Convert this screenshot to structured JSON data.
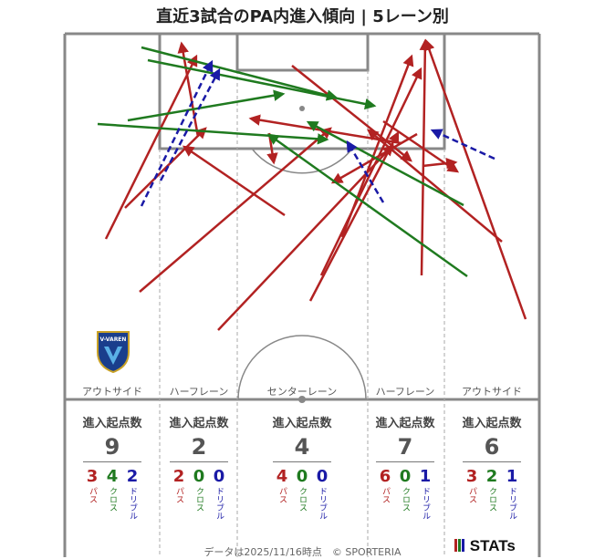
{
  "title": "直近3試合のPA内進入傾向 | 5レーン別",
  "colors": {
    "pass": "#b22222",
    "cross": "#1f7a1f",
    "dribble": "#1a1aa6",
    "line": "#888888"
  },
  "lanes": [
    {
      "name": "アウトサイド",
      "header": "進入起点数",
      "total": "9",
      "pass": "3",
      "cross": "4",
      "dribble": "2"
    },
    {
      "name": "ハーフレーン",
      "header": "進入起点数",
      "total": "2",
      "pass": "2",
      "cross": "0",
      "dribble": "0"
    },
    {
      "name": "センターレーン",
      "header": "進入起点数",
      "total": "4",
      "pass": "4",
      "cross": "0",
      "dribble": "0"
    },
    {
      "name": "ハーフレーン",
      "header": "進入起点数",
      "total": "7",
      "pass": "6",
      "cross": "0",
      "dribble": "1"
    },
    {
      "name": "アウトサイド",
      "header": "進入起点数",
      "total": "6",
      "pass": "3",
      "cross": "2",
      "dribble": "1"
    }
  ],
  "type_labels": {
    "pass": "パス",
    "cross": "クロス",
    "dribble": "ドリブル"
  },
  "footer": "データは2025/11/16時点　© SPORTERIA",
  "brand": "STATs",
  "logo_text": "V-VAREN",
  "chart_data": {
    "type": "scatter",
    "arrows": [
      {
        "kind": "pass",
        "from": [
          116,
          262
        ],
        "to": [
          215,
          62
        ]
      },
      {
        "kind": "pass",
        "from": [
          137,
          228
        ],
        "to": [
          225,
          141
        ]
      },
      {
        "kind": "pass",
        "from": [
          312,
          236
        ],
        "to": [
          202,
          161
        ]
      },
      {
        "kind": "pass",
        "from": [
          217,
          150
        ],
        "to": [
          199,
          48
        ]
      },
      {
        "kind": "pass",
        "from": [
          153,
          320
        ],
        "to": [
          362,
          141
        ]
      },
      {
        "kind": "pass",
        "from": [
          239,
          362
        ],
        "to": [
          430,
          160
        ]
      },
      {
        "kind": "pass",
        "from": [
          295,
          146
        ],
        "to": [
          300,
          178
        ]
      },
      {
        "kind": "pass",
        "from": [
          340,
          330
        ],
        "to": [
          436,
          146
        ]
      },
      {
        "kind": "pass",
        "from": [
          352,
          302
        ],
        "to": [
          461,
          76
        ]
      },
      {
        "kind": "pass",
        "from": [
          375,
          260
        ],
        "to": [
          451,
          62
        ]
      },
      {
        "kind": "pass",
        "from": [
          320,
          72
        ],
        "to": [
          450,
          176
        ]
      },
      {
        "kind": "pass",
        "from": [
          420,
          133
        ],
        "to": [
          501,
          188
        ]
      },
      {
        "kind": "pass",
        "from": [
          462,
          302
        ],
        "to": [
          466,
          45
        ]
      },
      {
        "kind": "pass",
        "from": [
          463,
          182
        ],
        "to": [
          499,
          178
        ]
      },
      {
        "kind": "pass",
        "from": [
          550,
          265
        ],
        "to": [
          404,
          143
        ]
      },
      {
        "kind": "pass",
        "from": [
          576,
          350
        ],
        "to": [
          467,
          45
        ]
      },
      {
        "kind": "pass",
        "from": [
          440,
          157
        ],
        "to": [
          275,
          130
        ]
      },
      {
        "kind": "pass",
        "from": [
          457,
          147
        ],
        "to": [
          365,
          200
        ]
      },
      {
        "kind": "cross",
        "from": [
          155,
          52
        ],
        "to": [
          368,
          107
        ]
      },
      {
        "kind": "cross",
        "from": [
          162,
          66
        ],
        "to": [
          410,
          116
        ]
      },
      {
        "kind": "cross",
        "from": [
          140,
          132
        ],
        "to": [
          310,
          103
        ]
      },
      {
        "kind": "cross",
        "from": [
          107,
          136
        ],
        "to": [
          358,
          153
        ]
      },
      {
        "kind": "cross",
        "from": [
          512,
          303
        ],
        "to": [
          295,
          148
        ]
      },
      {
        "kind": "cross",
        "from": [
          508,
          225
        ],
        "to": [
          338,
          134
        ]
      },
      {
        "kind": "dribble",
        "from": [
          155,
          226
        ],
        "to": [
          232,
          68
        ]
      },
      {
        "kind": "dribble",
        "from": [
          176,
          198
        ],
        "to": [
          240,
          77
        ]
      },
      {
        "kind": "dribble",
        "from": [
          420,
          222
        ],
        "to": [
          381,
          156
        ]
      },
      {
        "kind": "dribble",
        "from": [
          542,
          174
        ],
        "to": [
          474,
          143
        ]
      }
    ]
  }
}
